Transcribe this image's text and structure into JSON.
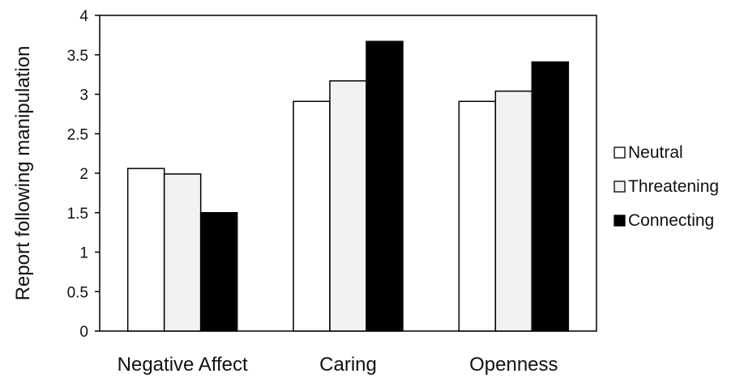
{
  "chart_data": {
    "type": "bar",
    "title": "",
    "xlabel": "",
    "ylabel": "Report following manipulation",
    "ylim": [
      0,
      4
    ],
    "yticks": [
      "0",
      "0.5",
      "1",
      "1.5",
      "2",
      "2.5",
      "3",
      "3.5",
      "4"
    ],
    "grid": false,
    "legend_position": "right",
    "categories": [
      "Negative Affect",
      "Caring",
      "Openness"
    ],
    "series": [
      {
        "name": "Neutral",
        "values": [
          2.06,
          2.91,
          2.91
        ],
        "color": "#ffffff"
      },
      {
        "name": "Threatening",
        "values": [
          1.99,
          3.17,
          3.04
        ],
        "color": "#f2f2f2"
      },
      {
        "name": "Connecting",
        "values": [
          1.5,
          3.67,
          3.41
        ],
        "color": "#000000"
      }
    ]
  }
}
